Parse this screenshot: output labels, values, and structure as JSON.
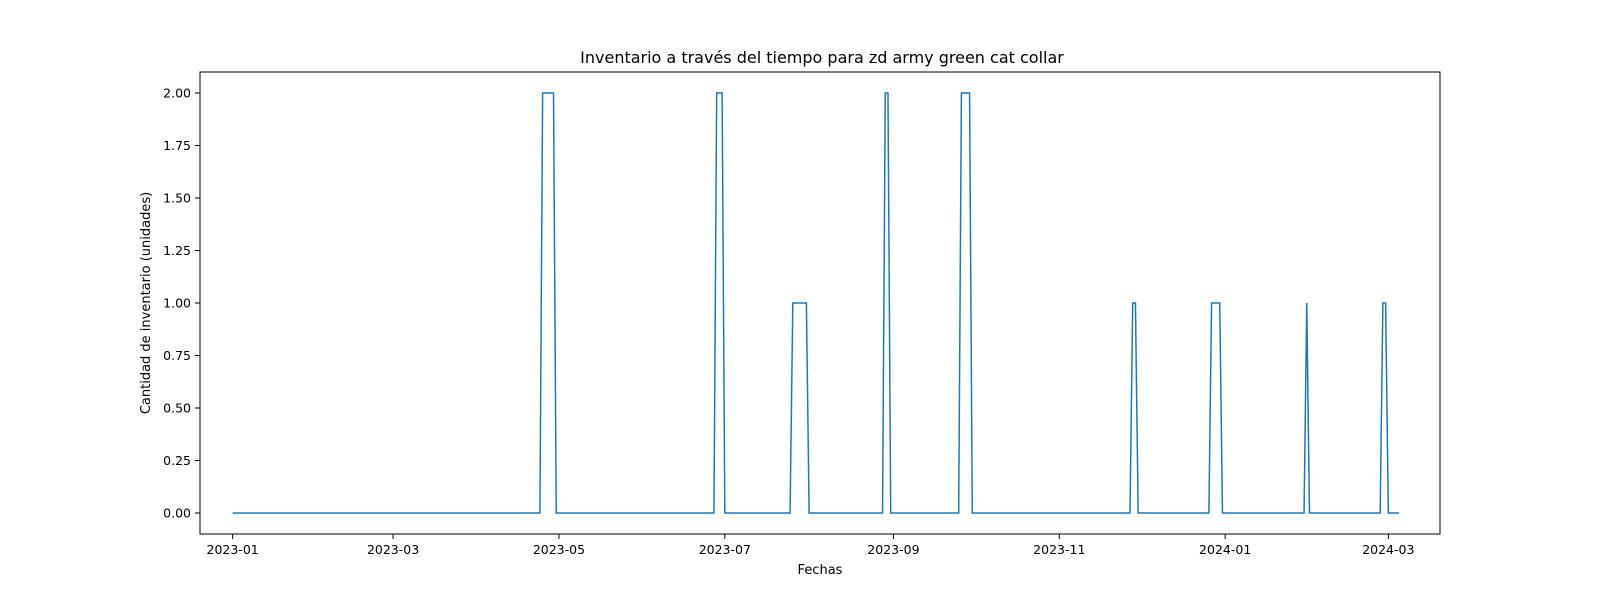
{
  "chart_data": {
    "type": "line",
    "title": "Inventario a través del tiempo para zd army green cat collar",
    "xlabel": "Fechas",
    "ylabel": "Cantidad de inventario (unidades)",
    "xlim": [
      "2022-12-20",
      "2024-03-20"
    ],
    "ylim": [
      -0.1,
      2.1
    ],
    "x_ticks": [
      "2023-01-01",
      "2023-03-01",
      "2023-05-01",
      "2023-07-01",
      "2023-09-01",
      "2023-11-01",
      "2024-01-01",
      "2024-03-01"
    ],
    "x_tick_labels": [
      "2023-01",
      "2023-03",
      "2023-05",
      "2023-07",
      "2023-09",
      "2023-11",
      "2024-01",
      "2024-03"
    ],
    "y_ticks": [
      0.0,
      0.25,
      0.5,
      0.75,
      1.0,
      1.25,
      1.5,
      1.75,
      2.0
    ],
    "y_tick_labels": [
      "0.00",
      "0.25",
      "0.50",
      "0.75",
      "1.00",
      "1.25",
      "1.50",
      "1.75",
      "2.00"
    ],
    "grid": false,
    "series": [
      {
        "color": "#1f77b4",
        "points": [
          [
            "2023-01-01",
            0
          ],
          [
            "2023-04-24",
            0
          ],
          [
            "2023-04-25",
            2
          ],
          [
            "2023-04-29",
            2
          ],
          [
            "2023-04-30",
            0
          ],
          [
            "2023-06-27",
            0
          ],
          [
            "2023-06-28",
            2
          ],
          [
            "2023-06-30",
            2
          ],
          [
            "2023-07-01",
            0
          ],
          [
            "2023-07-25",
            0
          ],
          [
            "2023-07-26",
            1
          ],
          [
            "2023-07-31",
            1
          ],
          [
            "2023-08-01",
            0
          ],
          [
            "2023-08-28",
            0
          ],
          [
            "2023-08-29",
            2
          ],
          [
            "2023-08-30",
            2
          ],
          [
            "2023-08-31",
            0
          ],
          [
            "2023-09-25",
            0
          ],
          [
            "2023-09-26",
            2
          ],
          [
            "2023-09-29",
            2
          ],
          [
            "2023-09-30",
            0
          ],
          [
            "2023-11-27",
            0
          ],
          [
            "2023-11-28",
            1
          ],
          [
            "2023-11-29",
            1
          ],
          [
            "2023-11-30",
            0
          ],
          [
            "2023-12-26",
            0
          ],
          [
            "2023-12-27",
            1
          ],
          [
            "2023-12-30",
            1
          ],
          [
            "2023-12-31",
            0
          ],
          [
            "2024-01-30",
            0
          ],
          [
            "2024-01-31",
            1
          ],
          [
            "2024-02-01",
            0
          ],
          [
            "2024-02-27",
            0
          ],
          [
            "2024-02-28",
            1
          ],
          [
            "2024-02-29",
            1
          ],
          [
            "2024-03-01",
            0
          ],
          [
            "2024-03-05",
            0
          ]
        ]
      }
    ]
  }
}
